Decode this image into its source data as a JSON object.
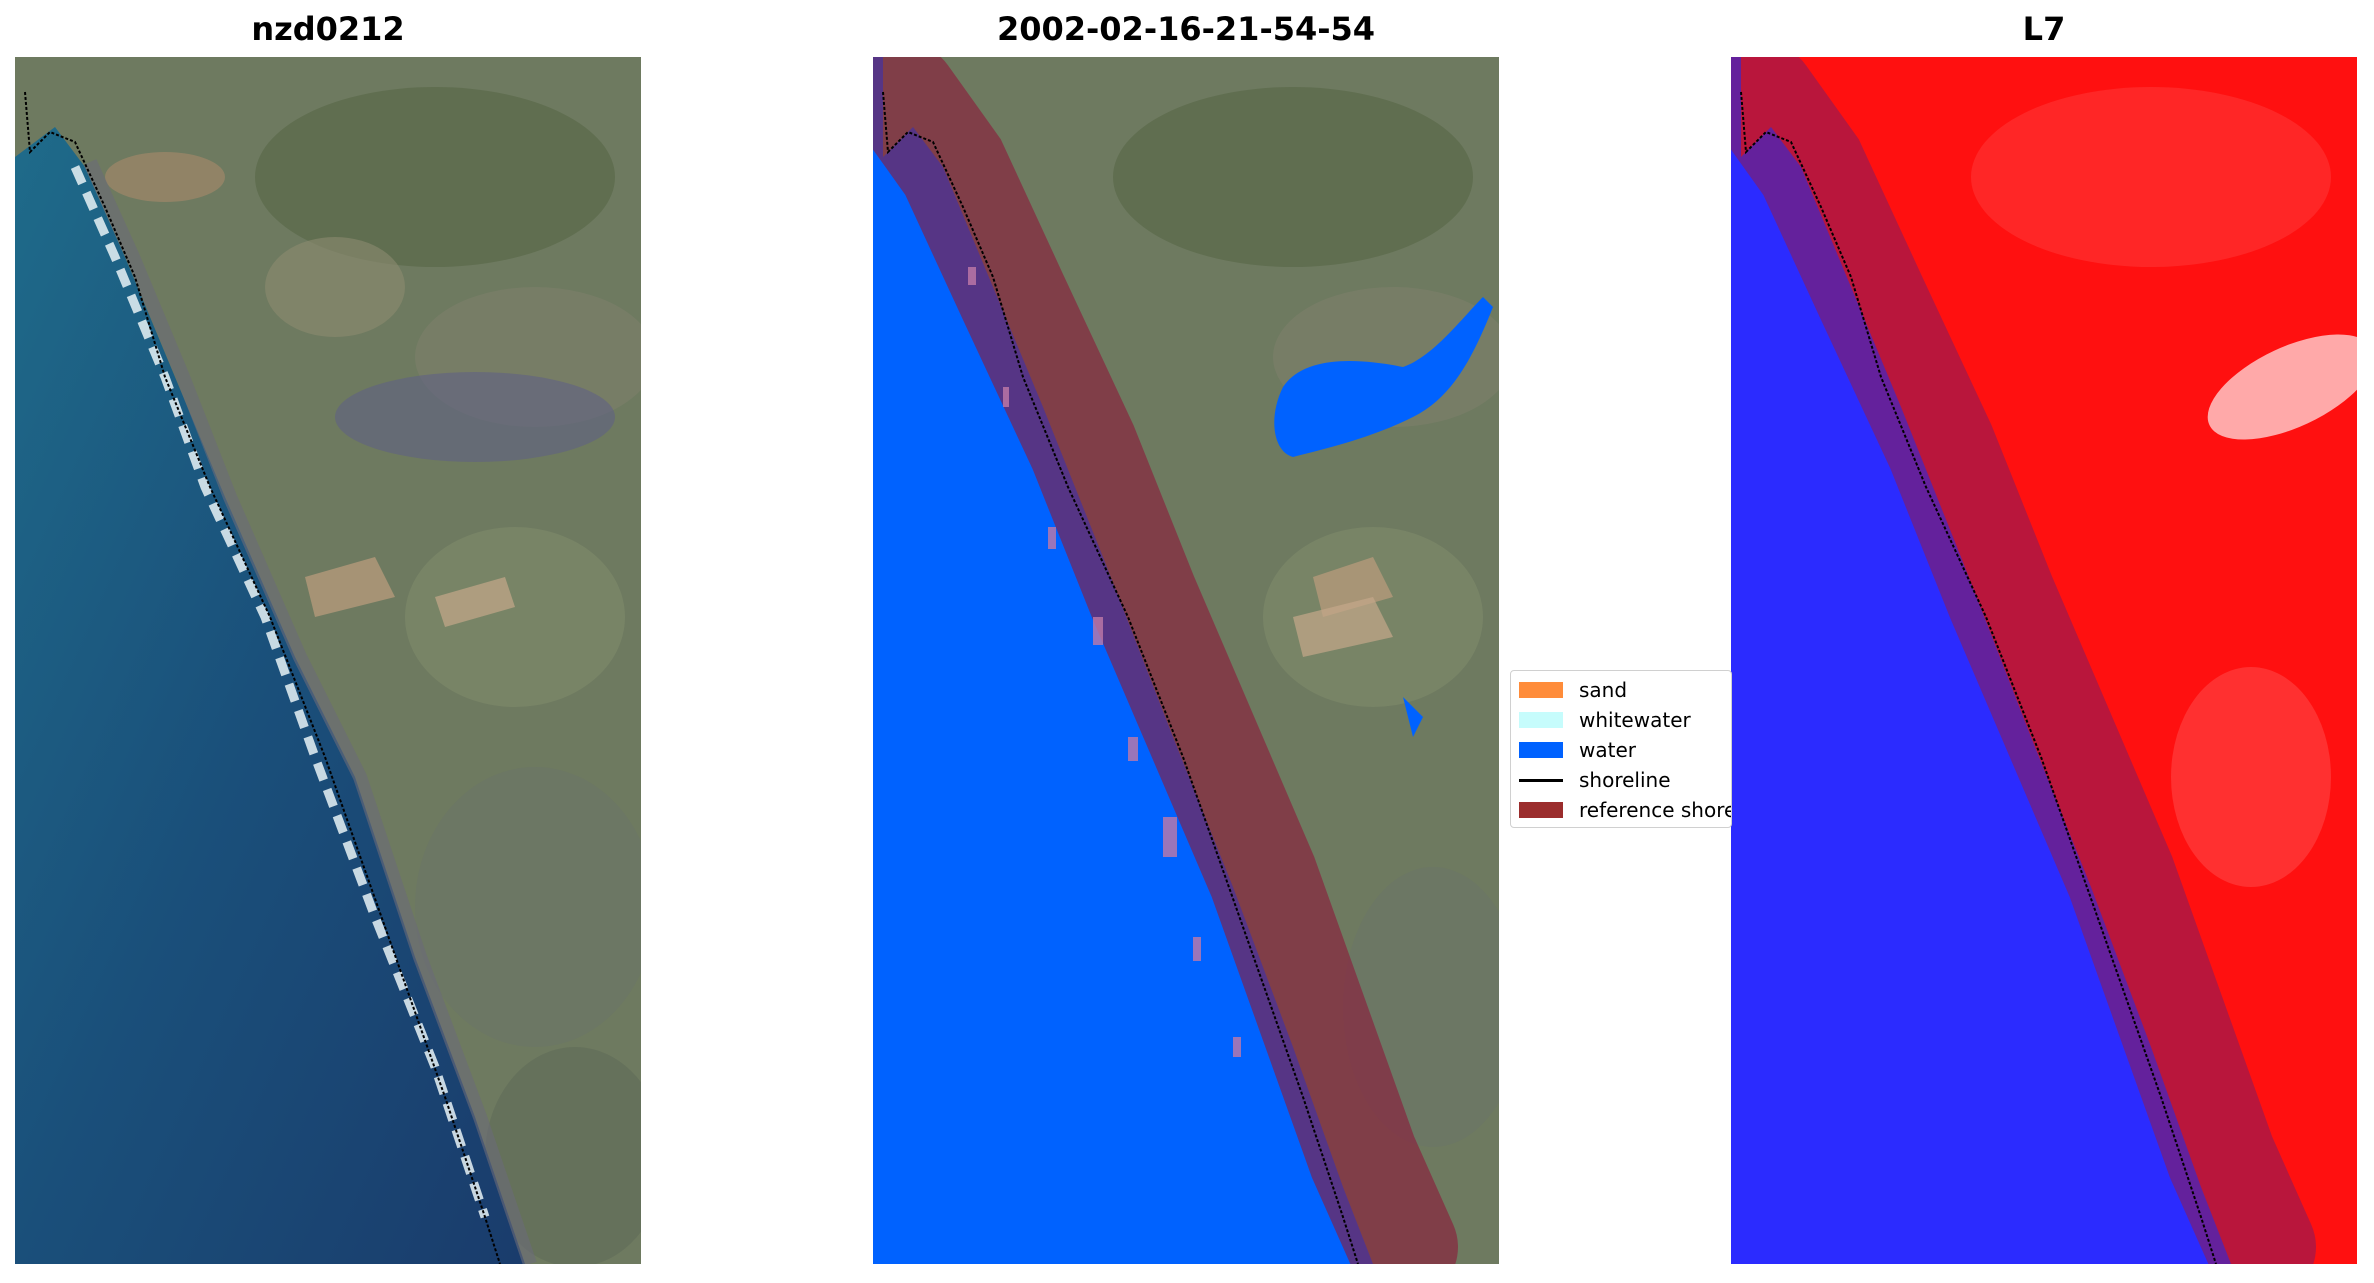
{
  "panels": [
    {
      "title": "nzd0212",
      "content": "true-color satellite image"
    },
    {
      "title": "2002-02-16-21-54-54",
      "content": "classified image overlay"
    },
    {
      "title": "L7",
      "content": "water index image"
    }
  ],
  "legend": {
    "items": [
      {
        "label": "sand",
        "color": "#ff8c3a",
        "kind": "patch"
      },
      {
        "label": "whitewater",
        "color": "#c6fcfc",
        "kind": "patch"
      },
      {
        "label": "water",
        "color": "#0062ff",
        "kind": "patch"
      },
      {
        "label": "shoreline",
        "color": "#000000",
        "kind": "line"
      },
      {
        "label": "reference shoreline buffer",
        "color": "#9b2d2d",
        "kind": "patch"
      }
    ]
  }
}
